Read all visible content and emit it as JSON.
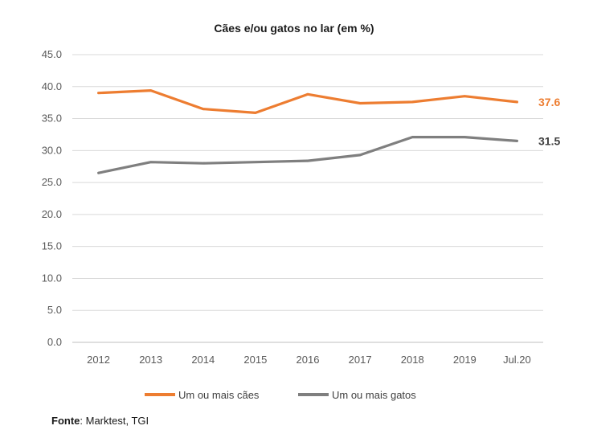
{
  "chart_data": {
    "type": "line",
    "title": "Cães e/ou gatos no lar (em %)",
    "categories": [
      "2012",
      "2013",
      "2014",
      "2015",
      "2016",
      "2017",
      "2018",
      "2019",
      "Jul.20"
    ],
    "ylim": [
      0,
      45
    ],
    "yticks": [
      "0.0",
      "5.0",
      "10.0",
      "15.0",
      "20.0",
      "25.0",
      "30.0",
      "35.0",
      "40.0",
      "45.0"
    ],
    "grid": true,
    "legend": "bottom",
    "series": [
      {
        "name": "Um ou mais cães",
        "color": "#ED7D31",
        "values": [
          39.0,
          39.4,
          36.5,
          35.9,
          38.8,
          37.4,
          37.6,
          38.5,
          37.6
        ],
        "end_label": "37.6"
      },
      {
        "name": "Um ou mais gatos",
        "color": "#7F7F7F",
        "values": [
          26.5,
          28.2,
          28.0,
          28.2,
          28.4,
          29.3,
          32.1,
          32.1,
          31.5
        ],
        "end_label": "31.5"
      }
    ]
  },
  "source": {
    "label": "Fonte",
    "text": ": Marktest, TGI"
  }
}
